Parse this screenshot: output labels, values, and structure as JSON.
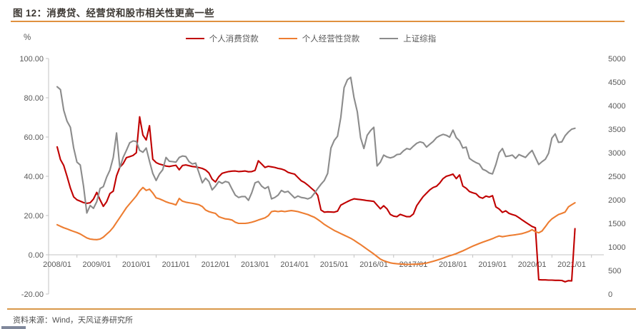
{
  "page": {
    "title": "图 12：消费贷、经营贷和股市相关性更高一些",
    "unit_label": "%",
    "source": "资料来源：Wind，天风证券研究所",
    "accent_orange": "#e0913f",
    "axis_text_color": "#595959"
  },
  "chart_data": {
    "type": "line",
    "title": "图 12：消费贷、经营贷和股市相关性更高一些",
    "grid": false,
    "legend_position": "top",
    "x_start": "2008/01",
    "x_end": "2021/02",
    "x_tick_labels": [
      "2008/01",
      "2009/01",
      "2010/01",
      "2011/01",
      "2012/01",
      "2013/01",
      "2014/01",
      "2015/01",
      "2016/01",
      "2017/01",
      "2018/01",
      "2019/01",
      "2020/01",
      "2021/01"
    ],
    "y_left": {
      "unit": "%",
      "min": -20,
      "max": 100,
      "step": 20,
      "tick_labels": [
        "100.00",
        "80.00",
        "60.00",
        "40.00",
        "20.00",
        "0.00",
        "-20.00"
      ]
    },
    "y_right": {
      "unit": "index points",
      "min": 0,
      "max": 5000,
      "step": 500,
      "tick_labels": [
        "5000",
        "4500",
        "4000",
        "3500",
        "3000",
        "2500",
        "2000",
        "1500",
        "1000",
        "500",
        "0"
      ]
    },
    "series": [
      {
        "name": "个人消费贷款",
        "color": "#c00000",
        "axis": "left",
        "values": [
          55.0,
          48.5,
          45.5,
          40.0,
          34.0,
          29.5,
          28.0,
          27.3,
          26.6,
          26.2,
          26.5,
          28.4,
          31.8,
          28.0,
          24.7,
          27.0,
          31.2,
          32.4,
          40.2,
          44.6,
          46.4,
          49.5,
          50.0,
          50.6,
          52.0,
          70.3,
          61.0,
          58.5,
          65.8,
          48.7,
          47.0,
          46.2,
          45.8,
          45.2,
          45.0,
          45.3,
          45.6,
          43.3,
          45.5,
          45.8,
          45.4,
          45.0,
          44.8,
          44.4,
          44.0,
          43.2,
          41.7,
          38.5,
          37.1,
          39.8,
          41.5,
          42.0,
          42.4,
          42.6,
          42.7,
          42.4,
          42.5,
          42.7,
          42.3,
          42.4,
          43.0,
          47.9,
          46.2,
          44.5,
          45.1,
          44.8,
          44.5,
          44.0,
          43.7,
          43.1,
          42.0,
          41.5,
          41.1,
          39.4,
          37.7,
          36.8,
          35.5,
          34.0,
          32.6,
          30.3,
          22.8,
          21.7,
          21.9,
          21.8,
          21.7,
          22.2,
          25.3,
          26.2,
          27.1,
          27.9,
          28.5,
          28.3,
          28.1,
          27.9,
          27.6,
          27.4,
          27.2,
          25.3,
          23.4,
          25.0,
          23.4,
          20.6,
          19.7,
          19.4,
          20.6,
          20.0,
          19.4,
          19.4,
          20.8,
          25.0,
          27.4,
          29.7,
          31.4,
          33.1,
          34.3,
          34.9,
          36.6,
          38.8,
          40.0,
          40.5,
          41.1,
          38.8,
          40.7,
          35.0,
          33.9,
          32.2,
          31.6,
          31.1,
          29.4,
          28.8,
          29.9,
          29.4,
          30.1,
          24.4,
          23.3,
          21.6,
          22.4,
          21.1,
          20.5,
          20.0,
          18.9,
          17.7,
          16.6,
          15.5,
          14.4,
          13.8,
          -12.7,
          -12.8,
          -12.8,
          -12.9,
          -12.9,
          -13.0,
          -13.0,
          -13.1,
          -13.8,
          -13.2,
          -13.3,
          13.3
        ]
      },
      {
        "name": "个人经营性贷款",
        "color": "#ed7d31",
        "axis": "left",
        "values": [
          15.3,
          14.5,
          13.8,
          13.2,
          12.5,
          11.9,
          11.3,
          10.6,
          9.6,
          8.6,
          8.0,
          7.8,
          7.7,
          8.0,
          9.0,
          10.5,
          12.0,
          14.0,
          16.5,
          19.0,
          21.5,
          24.0,
          26.0,
          28.0,
          30.0,
          32.5,
          34.3,
          32.8,
          33.4,
          31.5,
          29.0,
          28.5,
          27.8,
          27.0,
          26.4,
          26.0,
          25.4,
          28.7,
          27.3,
          26.8,
          26.5,
          26.2,
          25.9,
          25.5,
          24.6,
          22.8,
          22.0,
          21.5,
          21.1,
          19.4,
          18.8,
          18.3,
          18.1,
          17.7,
          16.6,
          16.0,
          16.0,
          16.0,
          16.2,
          16.6,
          17.1,
          17.7,
          18.3,
          18.8,
          19.9,
          22.0,
          22.3,
          22.0,
          22.3,
          22.0,
          22.3,
          22.5,
          22.3,
          22.0,
          21.5,
          21.0,
          20.5,
          19.8,
          19.1,
          18.0,
          16.8,
          15.5,
          14.4,
          13.4,
          12.4,
          11.6,
          10.8,
          10.0,
          9.2,
          8.4,
          7.4,
          6.3,
          5.2,
          4.0,
          2.8,
          1.6,
          0.4,
          -0.9,
          -2.2,
          -3.0,
          -3.6,
          -4.1,
          -4.4,
          -4.6,
          -4.7,
          -4.8,
          -4.9,
          -4.9,
          -4.8,
          -4.8,
          -4.7,
          -4.5,
          -4.2,
          -3.8,
          -3.3,
          -2.8,
          -2.3,
          -1.7,
          -1.1,
          -0.5,
          0.0,
          0.6,
          1.3,
          2.0,
          2.8,
          3.6,
          4.4,
          5.1,
          5.8,
          6.4,
          7.0,
          7.6,
          8.2,
          9.0,
          9.6,
          9.2,
          9.5,
          9.8,
          10.0,
          10.2,
          10.5,
          10.8,
          11.3,
          11.9,
          12.8,
          11.8,
          11.2,
          12.1,
          14.3,
          16.6,
          18.3,
          19.4,
          20.5,
          21.1,
          21.8,
          24.4,
          25.5,
          26.5
        ]
      },
      {
        "name": "上证综指",
        "color": "#8c8c8c",
        "axis": "right",
        "values": [
          4400,
          4340,
          3900,
          3670,
          3540,
          3100,
          2800,
          2740,
          2290,
          1720,
          1880,
          1820,
          1960,
          2240,
          2280,
          2480,
          2630,
          2900,
          3420,
          2680,
          2900,
          3050,
          3210,
          3250,
          3240,
          3050,
          3010,
          3100,
          2820,
          2560,
          2410,
          2550,
          2640,
          2900,
          2820,
          2810,
          2800,
          2900,
          2930,
          2920,
          2810,
          2760,
          2780,
          2570,
          2360,
          2460,
          2390,
          2210,
          2290,
          2390,
          2350,
          2390,
          2370,
          2230,
          2100,
          2050,
          2070,
          2070,
          1990,
          2150,
          2360,
          2390,
          2290,
          2240,
          2280,
          2020,
          2050,
          2100,
          2200,
          2160,
          2180,
          2110,
          2040,
          2080,
          2050,
          2040,
          2020,
          2050,
          2140,
          2240,
          2330,
          2410,
          2560,
          3100,
          3260,
          3350,
          3750,
          4380,
          4550,
          4600,
          4170,
          3870,
          3320,
          3090,
          3370,
          3470,
          3540,
          2720,
          2800,
          2950,
          2910,
          2890,
          2910,
          2960,
          2970,
          3040,
          3090,
          3070,
          3140,
          3200,
          3230,
          3210,
          3120,
          3180,
          3240,
          3320,
          3360,
          3390,
          3370,
          3330,
          3480,
          3320,
          3250,
          3100,
          3120,
          2880,
          2830,
          2790,
          2760,
          2650,
          2620,
          2570,
          2550,
          2750,
          3000,
          3090,
          2920,
          2930,
          2950,
          2880,
          2960,
          2930,
          2900,
          2980,
          3050,
          2900,
          2750,
          2810,
          2860,
          2990,
          3310,
          3400,
          3220,
          3230,
          3360,
          3440,
          3500,
          3520
        ]
      }
    ]
  }
}
